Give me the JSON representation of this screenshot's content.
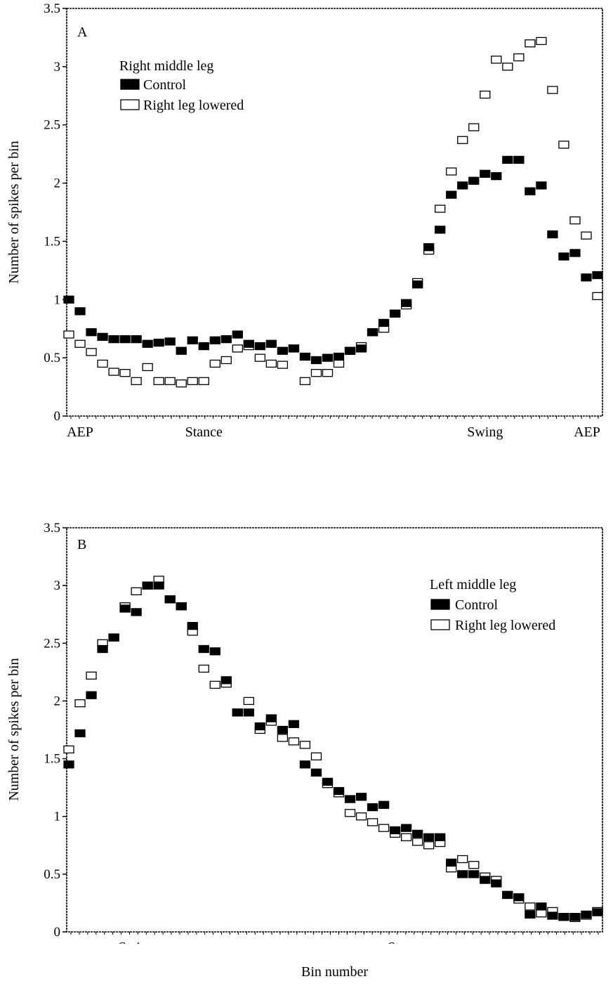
{
  "chart_data": [
    {
      "type": "scatter",
      "panel_label": "A",
      "ylabel": "Number of spikes per bin",
      "xlabel": "",
      "ylim": [
        0,
        3.5
      ],
      "xlim": [
        1,
        48
      ],
      "y_ticks": [
        "0",
        "0.5",
        "1",
        "1.5",
        "2",
        "2.5",
        "3",
        "3.5"
      ],
      "x_tick_labels": [
        {
          "label": "AEP",
          "x": 2
        },
        {
          "label": "Stance",
          "x": 13
        },
        {
          "label": "Swing",
          "x": 38
        },
        {
          "label": "AEP",
          "x": 47.5
        }
      ],
      "legend_title": "Right middle leg",
      "legend_position": "top-left",
      "series": [
        {
          "name": "Control",
          "marker": "filled",
          "color": "#000000",
          "x": [
            1,
            2,
            3,
            4,
            5,
            6,
            7,
            8,
            9,
            10,
            11,
            12,
            13,
            14,
            15,
            16,
            17,
            18,
            19,
            20,
            21,
            22,
            23,
            24,
            25,
            26,
            27,
            28,
            29,
            30,
            31,
            32,
            33,
            34,
            35,
            36,
            37,
            38,
            39,
            40,
            41,
            42,
            43,
            44,
            45,
            46,
            47,
            48
          ],
          "y": [
            1.0,
            0.9,
            0.72,
            0.68,
            0.66,
            0.66,
            0.66,
            0.62,
            0.63,
            0.64,
            0.56,
            0.65,
            0.6,
            0.65,
            0.66,
            0.7,
            0.62,
            0.6,
            0.62,
            0.56,
            0.58,
            0.51,
            0.48,
            0.5,
            0.51,
            0.56,
            0.58,
            0.72,
            0.8,
            0.88,
            0.97,
            1.13,
            1.45,
            1.6,
            1.9,
            1.98,
            2.02,
            2.08,
            2.06,
            2.2,
            2.2,
            1.93,
            1.98,
            1.56,
            1.37,
            1.4,
            1.19,
            1.21
          ]
        },
        {
          "name": "Right leg lowered",
          "marker": "open",
          "color": "#ffffff",
          "x": [
            1,
            2,
            3,
            4,
            5,
            6,
            7,
            8,
            9,
            10,
            11,
            12,
            13,
            14,
            15,
            16,
            17,
            18,
            19,
            20,
            21,
            22,
            23,
            24,
            25,
            26,
            27,
            28,
            29,
            30,
            31,
            32,
            33,
            34,
            35,
            36,
            37,
            38,
            39,
            40,
            41,
            42,
            43,
            44,
            45,
            46,
            47,
            48
          ],
          "y": [
            0.7,
            0.62,
            0.55,
            0.45,
            0.38,
            0.37,
            0.3,
            0.42,
            0.3,
            0.3,
            0.28,
            0.3,
            0.3,
            0.45,
            0.48,
            0.58,
            0.6,
            0.5,
            0.45,
            0.44,
            0.58,
            0.3,
            0.37,
            0.37,
            0.45,
            0.56,
            0.6,
            0.72,
            0.75,
            0.88,
            0.95,
            1.15,
            1.42,
            1.78,
            2.1,
            2.37,
            2.48,
            2.76,
            3.06,
            3.0,
            3.08,
            3.2,
            3.22,
            2.8,
            2.33,
            1.68,
            1.55,
            1.03
          ]
        }
      ]
    },
    {
      "type": "scatter",
      "panel_label": "B",
      "ylabel": "Number of spikes per bin",
      "xlabel": "Bin number",
      "ylim": [
        0,
        3.5
      ],
      "xlim": [
        1,
        48
      ],
      "y_ticks": [
        "0",
        "0.5",
        "1",
        "1.5",
        "2",
        "2.5",
        "3",
        "3.5"
      ],
      "x_tick_labels": [
        {
          "label": "Swing",
          "x": 7
        },
        {
          "label": "Stance",
          "x": 31
        }
      ],
      "legend_title": "Left middle leg",
      "legend_position": "top-right",
      "series": [
        {
          "name": "Control",
          "marker": "filled",
          "color": "#000000",
          "x": [
            1,
            2,
            3,
            4,
            5,
            6,
            7,
            8,
            9,
            10,
            11,
            12,
            13,
            14,
            15,
            16,
            17,
            18,
            19,
            20,
            21,
            22,
            23,
            24,
            25,
            26,
            27,
            28,
            29,
            30,
            31,
            32,
            33,
            34,
            35,
            36,
            37,
            38,
            39,
            40,
            41,
            42,
            43,
            44,
            45,
            46,
            47,
            48
          ],
          "y": [
            1.45,
            1.72,
            2.05,
            2.45,
            2.55,
            2.8,
            2.77,
            3.0,
            3.0,
            2.88,
            2.82,
            2.65,
            2.45,
            2.43,
            2.18,
            1.9,
            1.9,
            1.78,
            1.85,
            1.75,
            1.8,
            1.45,
            1.38,
            1.3,
            1.22,
            1.15,
            1.17,
            1.08,
            1.1,
            0.88,
            0.9,
            0.85,
            0.82,
            0.82,
            0.6,
            0.5,
            0.5,
            0.45,
            0.42,
            0.32,
            0.3,
            0.15,
            0.22,
            0.14,
            0.13,
            0.13,
            0.15,
            0.17
          ]
        },
        {
          "name": "Right leg lowered",
          "marker": "open",
          "color": "#ffffff",
          "x": [
            1,
            2,
            3,
            4,
            5,
            6,
            7,
            8,
            9,
            10,
            11,
            12,
            13,
            14,
            15,
            16,
            17,
            18,
            19,
            20,
            21,
            22,
            23,
            24,
            25,
            26,
            27,
            28,
            29,
            30,
            31,
            32,
            33,
            34,
            35,
            36,
            37,
            38,
            39,
            40,
            41,
            42,
            43,
            44,
            45,
            46,
            47,
            48
          ],
          "y": [
            1.58,
            1.98,
            2.22,
            2.5,
            2.55,
            2.82,
            2.95,
            3.0,
            3.05,
            2.88,
            2.82,
            2.6,
            2.28,
            2.14,
            2.15,
            1.9,
            2.0,
            1.75,
            1.82,
            1.68,
            1.65,
            1.62,
            1.52,
            1.28,
            1.2,
            1.03,
            1.0,
            0.95,
            0.9,
            0.85,
            0.82,
            0.78,
            0.75,
            0.77,
            0.55,
            0.63,
            0.58,
            0.48,
            0.45,
            0.32,
            0.28,
            0.22,
            0.16,
            0.18,
            0.13,
            0.12,
            0.14,
            0.18
          ]
        }
      ]
    }
  ],
  "xlabel": "Bin number"
}
